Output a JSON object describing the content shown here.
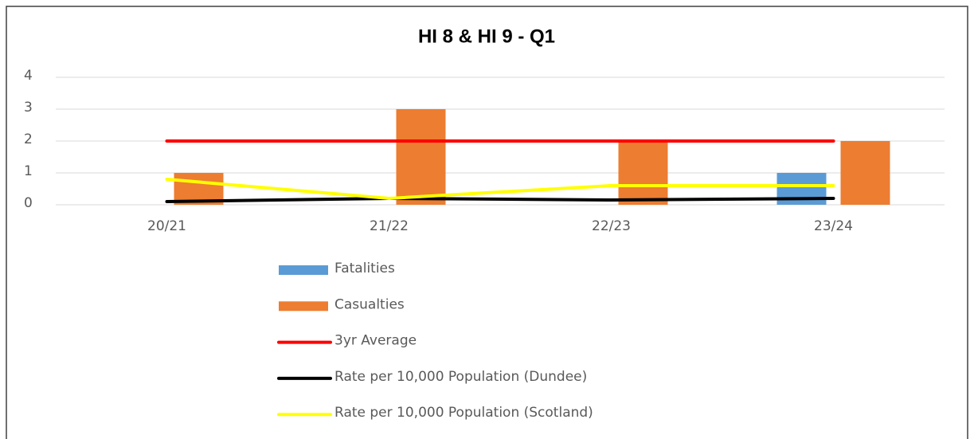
{
  "chart_data": {
    "type": "bar_line",
    "title": "HI 8 & HI 9 - Q1",
    "categories": [
      "20/21",
      "21/22",
      "22/23",
      "23/24"
    ],
    "ylim": [
      0,
      4
    ],
    "yticks": [
      0,
      1,
      2,
      3,
      4
    ],
    "grid": true,
    "legend": "bottom",
    "series": [
      {
        "name": "Fatalities",
        "kind": "bar",
        "color": "#5b9bd5",
        "values": [
          0,
          0,
          0,
          1
        ]
      },
      {
        "name": "Casualties",
        "kind": "bar",
        "color": "#ed7d31",
        "values": [
          1,
          3,
          2,
          2
        ]
      },
      {
        "name": "3yr Average",
        "kind": "line",
        "color": "#ff0000",
        "values": [
          2,
          2,
          2,
          2
        ]
      },
      {
        "name": "Rate per 10,000 Population (Dundee)",
        "kind": "line",
        "color": "#000000",
        "values": [
          0.1,
          0.2,
          0.15,
          0.2
        ]
      },
      {
        "name": "Rate per 10,000 Population (Scotland)",
        "kind": "line",
        "color": "#ffff00",
        "values": [
          0.8,
          0.2,
          0.6,
          0.6
        ]
      }
    ]
  }
}
